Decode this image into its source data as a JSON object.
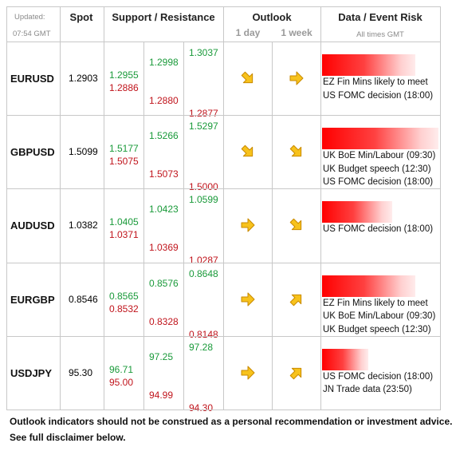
{
  "header": {
    "updated_label": "Updated:",
    "updated_time": "07:54 GMT",
    "spot": "Spot",
    "support_resistance": "Support / Resistance",
    "outlook": "Outlook",
    "one_day": "1 day",
    "one_week": "1 week",
    "event_risk": "Data / Event Risk",
    "times_note": "All times GMT"
  },
  "rows": [
    {
      "pair": "EURUSD",
      "spot": "1.2903",
      "levels": [
        [
          "1.2955",
          "1.2886"
        ],
        [
          "1.2998",
          "1.2880"
        ],
        [
          "1.3037",
          "1.2877"
        ]
      ],
      "outlook": [
        "down-right",
        "right"
      ],
      "risk": 80,
      "events": [
        "EZ Fin Mins likely to meet",
        "US FOMC decision (18:00)"
      ]
    },
    {
      "pair": "GBPUSD",
      "spot": "1.5099",
      "levels": [
        [
          "1.5177",
          "1.5075"
        ],
        [
          "1.5266",
          "1.5073"
        ],
        [
          "1.5297",
          "1.5000"
        ]
      ],
      "outlook": [
        "down-right",
        "down-right"
      ],
      "risk": 100,
      "events": [
        "UK BoE Min/Labour (09:30)",
        "UK Budget speech (12:30)",
        "US FOMC decision (18:00)"
      ]
    },
    {
      "pair": "AUDUSD",
      "spot": "1.0382",
      "levels": [
        [
          "1.0405",
          "1.0371"
        ],
        [
          "1.0423",
          "1.0369"
        ],
        [
          "1.0599",
          "1.0287"
        ]
      ],
      "outlook": [
        "right",
        "down-right"
      ],
      "risk": 60,
      "events": [
        "US FOMC decision (18:00)"
      ]
    },
    {
      "pair": "EURGBP",
      "spot": "0.8546",
      "levels": [
        [
          "0.8565",
          "0.8532"
        ],
        [
          "0.8576",
          "0.8328"
        ],
        [
          "0.8648",
          "0.8148"
        ]
      ],
      "outlook": [
        "right",
        "up-right"
      ],
      "risk": 80,
      "events": [
        "EZ Fin Mins likely to meet",
        "UK BoE Min/Labour (09:30)",
        "UK Budget speech (12:30)"
      ]
    },
    {
      "pair": "USDJPY",
      "spot": "95.30",
      "levels": [
        [
          "96.71",
          "95.00"
        ],
        [
          "97.25",
          "94.99"
        ],
        [
          "97.28",
          "94.30"
        ]
      ],
      "outlook": [
        "right",
        "up-right"
      ],
      "risk": 40,
      "events": [
        "US FOMC decision (18:00)",
        "JN Trade data (23:50)"
      ]
    }
  ],
  "footer": [
    "Outlook indicators should not be construed as a personal recommendation or investment advice.",
    "See full disclaimer below."
  ]
}
